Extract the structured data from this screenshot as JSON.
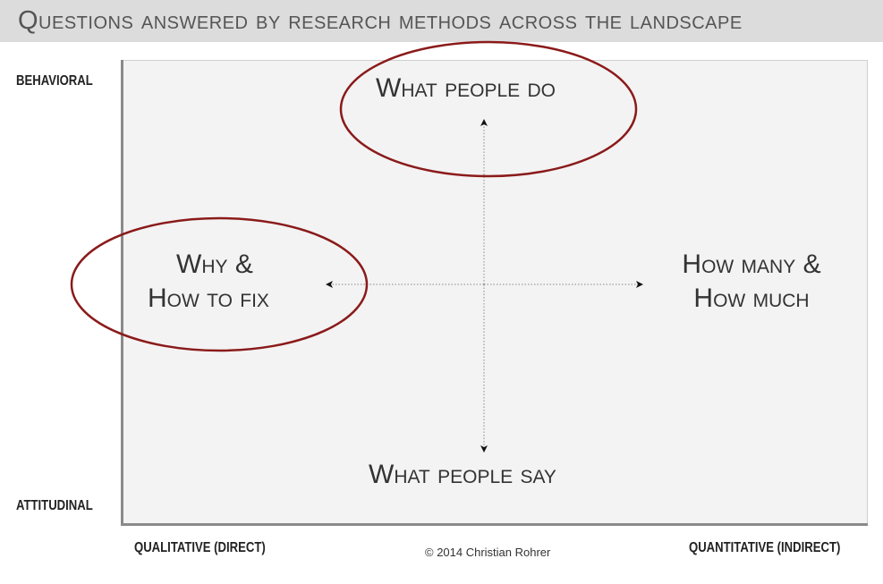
{
  "title": "Questions answered by research methods across the landscape",
  "y_axis": {
    "top_label": "BEHAVIORAL",
    "bottom_label": "ATTITUDINAL"
  },
  "x_axis": {
    "left_label": "QUALITATIVE (DIRECT)",
    "right_label": "QUANTITATIVE (INDIRECT)"
  },
  "quadrants": {
    "top": "What people do",
    "bottom": "What people say",
    "left_line1": "Why &",
    "left_line2": "How to fix",
    "right_line1": "How many &",
    "right_line2": "How much"
  },
  "highlighted": [
    "What people do",
    "Why & How to fix"
  ],
  "credit": "© 2014 Christian Rohrer",
  "colors": {
    "highlight_ellipse": "#8b1a1a",
    "title_bar": "#dcdcdc",
    "plot_background": "#f3f3f3"
  }
}
